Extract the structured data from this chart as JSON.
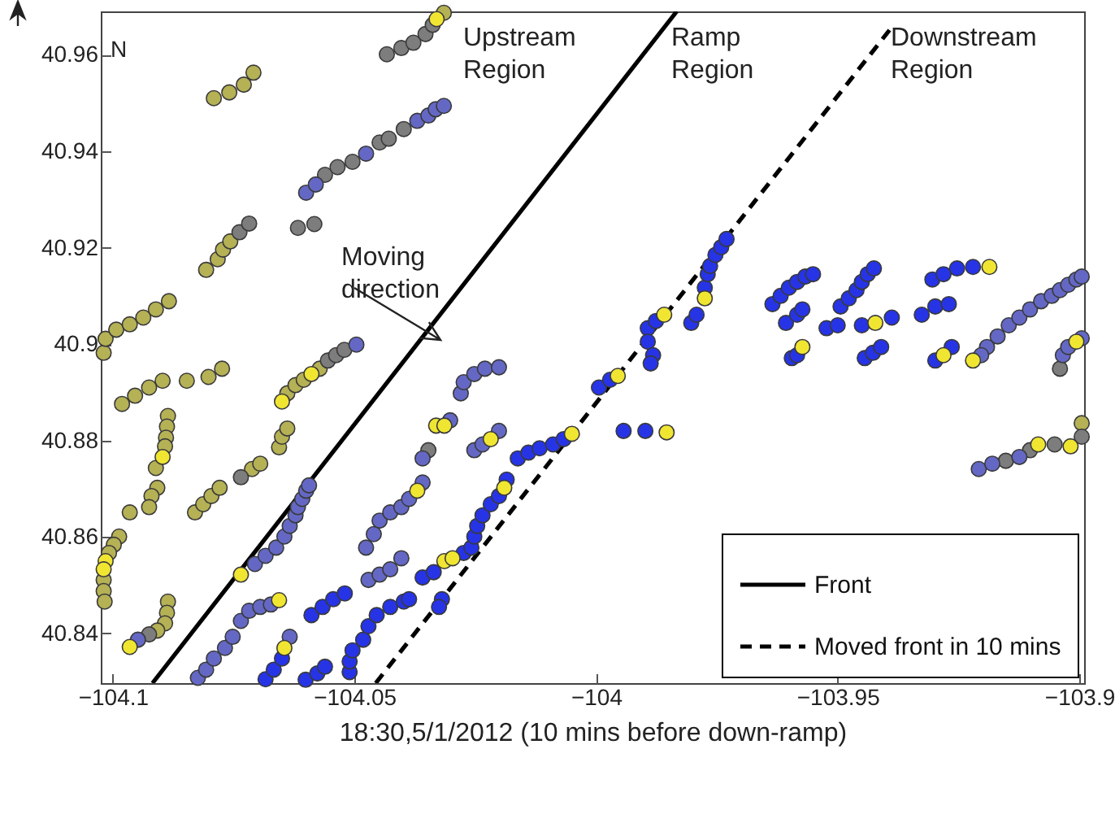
{
  "chart_data": {
    "type": "scatter",
    "xlabel": "18:30,5/1/2012 (10 mins before down-ramp)",
    "xlim": [
      -104.1025,
      -103.899
    ],
    "ylim": [
      40.8297,
      40.969
    ],
    "xticks": [
      -104.1,
      -104.05,
      -104,
      -103.95,
      -103.9
    ],
    "yticks": [
      40.84,
      40.86,
      40.88,
      40.9,
      40.92,
      40.94,
      40.96
    ],
    "legend": "bottom right",
    "annotations": [
      "Upstream Region",
      "Ramp Region",
      "Downstream Region",
      "Moving direction",
      "N"
    ],
    "series": [
      {
        "color": "#b5b155",
        "marker": "circle",
        "x": [
          -104.0791,
          -104.0759,
          -104.0729,
          -104.0709,
          -104.0315,
          -104.0807,
          -104.0783,
          -104.0772,
          -104.0757,
          -104.1019,
          -104.1015,
          -104.0993,
          -104.0965,
          -104.0937,
          -104.0911,
          -104.0884,
          -104.0981,
          -104.0954,
          -104.0925,
          -104.0897,
          -104.0847,
          -104.0802,
          -104.0774,
          -104.0886,
          -104.0888,
          -104.089,
          -104.0892,
          -104.0911,
          -104.0908,
          -104.092,
          -104.0925,
          -104.0965,
          -104.0639,
          -104.0622,
          -104.0605,
          -104.0572,
          -104.0656,
          -104.065,
          -104.0639,
          -104.0712,
          -104.0695,
          -104.083,
          -104.0813,
          -104.0796,
          -104.0779,
          -104.0987,
          -104.0998,
          -104.1008,
          -104.1019,
          -104.1019,
          -104.1017,
          -104.0886,
          -104.0888,
          -104.0892,
          -104.0908,
          -103.8995
        ],
        "values": [
          40.951,
          40.9522,
          40.9538,
          40.9563,
          40.9687,
          40.9154,
          40.9176,
          40.9196,
          40.9213,
          40.8982,
          40.9011,
          40.903,
          40.9041,
          40.9055,
          40.9072,
          40.9089,
          40.8876,
          40.8893,
          40.891,
          40.8924,
          40.8924,
          40.8932,
          40.8949,
          40.8851,
          40.8829,
          40.8806,
          40.8788,
          40.8743,
          40.8702,
          40.8685,
          40.8662,
          40.8651,
          40.8898,
          40.8915,
          40.8926,
          40.8949,
          40.8786,
          40.8808,
          40.8825,
          40.8741,
          40.8752,
          40.8651,
          40.8668,
          40.8685,
          40.8702,
          40.8601,
          40.8584,
          40.8567,
          40.8511,
          40.8488,
          40.8466,
          40.8466,
          40.8443,
          40.8421,
          40.8406,
          40.8836
        ]
      },
      {
        "color": "#7d7d7d",
        "marker": "circle",
        "x": [
          -104.0433,
          -104.0403,
          -104.0378,
          -104.0353,
          -104.0338,
          -104.0617,
          -104.0583,
          -104.0738,
          -104.0718,
          -104.0561,
          -104.0535,
          -104.0504,
          -104.0448,
          -104.0429,
          -104.0398,
          -104.0555,
          -104.0538,
          -104.0521,
          -104.0735,
          -104.0925,
          -104.0347,
          -103.904,
          -103.9152,
          -103.9102,
          -103.9051,
          -103.8995
        ],
        "values": [
          40.9601,
          40.9614,
          40.9625,
          40.9643,
          40.9662,
          40.9241,
          40.9249,
          40.9232,
          40.925,
          40.9351,
          40.9367,
          40.9378,
          40.9418,
          40.9426,
          40.9446,
          40.8966,
          40.8977,
          40.8988,
          40.8724,
          40.8398,
          40.878,
          40.8949,
          40.8758,
          40.878,
          40.8792,
          40.8808
        ]
      },
      {
        "color": "#6468c4",
        "marker": "circle",
        "x": [
          -104.06,
          -104.058,
          -104.0476,
          -104.037,
          -104.0347,
          -104.0332,
          -104.0315,
          -104.0496,
          -104.0948,
          -104.0706,
          -104.0684,
          -104.0662,
          -104.0645,
          -104.0634,
          -104.0622,
          -104.0617,
          -104.0608,
          -104.06,
          -104.0594,
          -104.0824,
          -104.0807,
          -104.0791,
          -104.0768,
          -104.0752,
          -104.0735,
          -104.0718,
          -104.0695,
          -104.0673,
          -104.0634,
          -104.0476,
          -104.046,
          -104.0448,
          -104.0426,
          -104.0403,
          -104.0387,
          -104.0359,
          -104.0359,
          -104.0471,
          -104.0448,
          -104.0426,
          -104.0403,
          -104.028,
          -104.0274,
          -104.0252,
          -104.023,
          -104.0201,
          -104.0302,
          -104.0252,
          -104.0235,
          -104.0201,
          -103.9191,
          -103.9169,
          -103.9146,
          -103.9124,
          -103.9102,
          -103.9079,
          -103.9057,
          -103.904,
          -103.9023,
          -103.9006,
          -103.8995,
          -103.9203,
          -103.9034,
          -103.9023,
          -103.8995,
          -103.9208,
          -103.918,
          -103.9124
        ],
        "values": [
          40.9314,
          40.9331,
          40.9395,
          40.9463,
          40.9474,
          40.9487,
          40.9494,
          40.8999,
          40.8387,
          40.8544,
          40.8561,
          40.8578,
          40.8601,
          40.8623,
          40.8645,
          40.8662,
          40.8679,
          40.8696,
          40.8707,
          40.8308,
          40.8325,
          40.8348,
          40.837,
          40.8393,
          40.8426,
          40.8447,
          40.8455,
          40.846,
          40.8393,
          40.8578,
          40.8606,
          40.8634,
          40.8651,
          40.8662,
          40.8679,
          40.8713,
          40.8763,
          40.8511,
          40.8522,
          40.8533,
          40.8556,
          40.8898,
          40.8921,
          40.8938,
          40.8949,
          40.8952,
          40.8842,
          40.878,
          40.8792,
          40.882,
          40.8994,
          40.9016,
          40.9039,
          40.9055,
          40.9072,
          40.9089,
          40.91,
          40.9112,
          40.9123,
          40.9134,
          40.914,
          40.8977,
          40.8977,
          40.8994,
          40.9012,
          40.8741,
          40.8752,
          40.8766
        ]
      },
      {
        "color": "#2634e6",
        "marker": "circle",
        "x": [
          -104.0684,
          -104.0667,
          -104.065,
          -104.0589,
          -104.0566,
          -104.0544,
          -104.052,
          -104.051,
          -104.051,
          -104.0504,
          -104.0482,
          -104.0471,
          -104.0454,
          -104.0426,
          -104.0398,
          -104.0387,
          -104.0601,
          -104.0577,
          -104.0561,
          -104.0162,
          -104.014,
          -104.0117,
          -104.0089,
          -104.0067,
          -104.0359,
          -104.0336,
          -104.0274,
          -104.0258,
          -104.0252,
          -104.0246,
          -104.0235,
          -104.0218,
          -104.0201,
          -104.0185,
          -104.0319,
          -104.0325,
          -103.9994,
          -103.9971,
          -103.9943,
          -103.9898,
          -103.9893,
          -103.9876,
          -103.9893,
          -103.9882,
          -103.9887,
          -103.9803,
          -103.9792,
          -103.9775,
          -103.9769,
          -103.9764,
          -103.9753,
          -103.9741,
          -103.973,
          -103.9635,
          -103.9618,
          -103.9601,
          -103.9584,
          -103.9567,
          -103.9551,
          -103.9607,
          -103.9584,
          -103.9573,
          -103.9494,
          -103.9477,
          -103.9461,
          -103.945,
          -103.9438,
          -103.9425,
          -103.9523,
          -103.95,
          -103.945,
          -103.9388,
          -103.9304,
          -103.9281,
          -103.9253,
          -103.922,
          -103.9326,
          -103.9298,
          -103.927,
          -103.9595,
          -103.9584,
          -103.9444,
          -103.9427,
          -103.941,
          -103.9298,
          -103.9264
        ],
        "values": [
          40.8305,
          40.8325,
          40.8348,
          40.8438,
          40.8455,
          40.8471,
          40.8483,
          40.832,
          40.8342,
          40.8365,
          40.8387,
          40.8415,
          40.8438,
          40.8455,
          40.8466,
          40.8471,
          40.8304,
          40.8317,
          40.8331,
          40.8763,
          40.8775,
          40.8784,
          40.8792,
          40.8803,
          40.8516,
          40.8527,
          40.8567,
          40.8578,
          40.8601,
          40.8623,
          40.8645,
          40.8668,
          40.8685,
          40.8719,
          40.8471,
          40.8455,
          40.891,
          40.8926,
          40.882,
          40.882,
          40.9033,
          40.9048,
          40.9005,
          40.8977,
          40.896,
          40.9044,
          40.9061,
          40.9117,
          40.9145,
          40.9162,
          40.9185,
          40.9201,
          40.9218,
          40.9083,
          40.91,
          40.9117,
          40.9129,
          40.914,
          40.9145,
          40.9044,
          40.9061,
          40.9072,
          40.9078,
          40.9095,
          40.9112,
          40.9129,
          40.9145,
          40.9157,
          40.9033,
          40.9039,
          40.9039,
          40.9055,
          40.9134,
          40.9145,
          40.9157,
          40.916,
          40.9061,
          40.9078,
          40.9083,
          40.8971,
          40.8977,
          40.8971,
          40.8982,
          40.8994,
          40.8966,
          40.8994
        ]
      },
      {
        "color": "#f0e632",
        "marker": "circle",
        "x": [
          -104.033,
          -104.0897,
          -104.065,
          -104.0589,
          -104.1015,
          -104.1019,
          -104.0965,
          -104.0735,
          -104.0656,
          -104.0645,
          -104.037,
          -104.0331,
          -104.0314,
          -104.0218,
          -104.005,
          -104.0314,
          -104.0297,
          -104.019,
          -103.9955,
          -103.9854,
          -103.9859,
          -103.9775,
          -103.9422,
          -103.9186,
          -103.9573,
          -103.9281,
          -103.922,
          -103.9006,
          -103.9085,
          -103.9018
        ],
        "values": [
          40.9674,
          40.8766,
          40.8881,
          40.8938,
          40.855,
          40.8533,
          40.8372,
          40.8522,
          40.8469,
          40.837,
          40.8696,
          40.8831,
          40.8831,
          40.8803,
          40.8814,
          40.855,
          40.8556,
          40.8702,
          40.8934,
          40.8817,
          40.9061,
          40.9095,
          40.9044,
          40.916,
          40.8994,
          40.8977,
          40.8966,
          40.9005,
          40.8792,
          40.8788
        ]
      },
      {
        "type": "line",
        "name": "Front",
        "color": "#000000",
        "line_style": "solid",
        "x": [
          -104.0918,
          -103.9833
        ],
        "values": [
          40.8297,
          40.969
        ]
      },
      {
        "type": "line",
        "name": "Moved front in 10 mins",
        "color": "#000000",
        "line_style": "dashed",
        "x": [
          -104.0456,
          -103.9389
        ],
        "values": [
          40.8297,
          40.9656
        ]
      }
    ]
  }
}
